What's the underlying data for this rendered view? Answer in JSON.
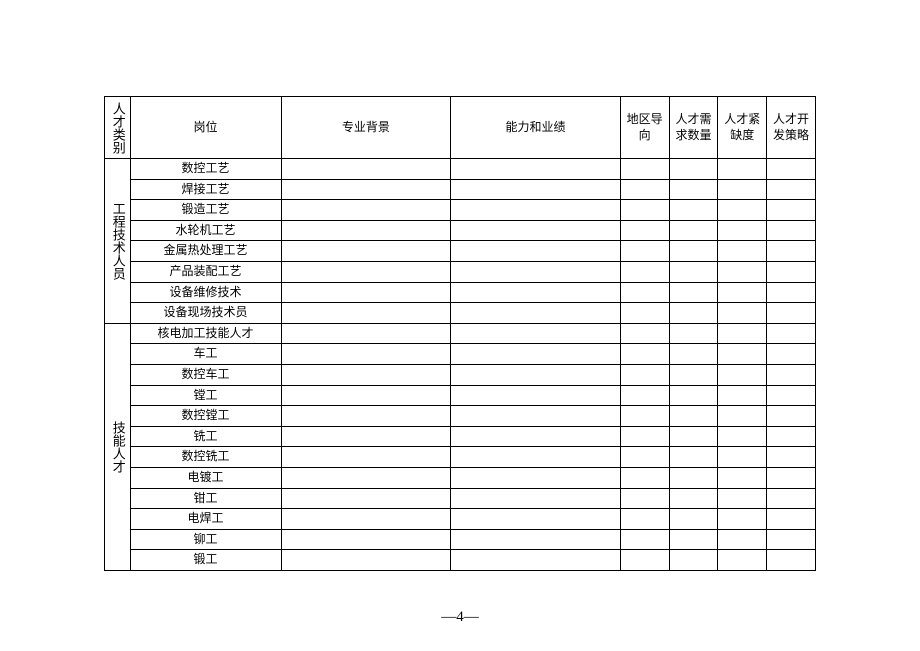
{
  "headers": {
    "category": "人才类别",
    "position": "岗位",
    "background": "专业背景",
    "performance": "能力和业绩",
    "region": "地区导向",
    "demand": "人才需求数量",
    "scarcity": "人才紧缺度",
    "strategy": "人才开发策略"
  },
  "groups": [
    {
      "label": "工程技术人员",
      "rows": [
        "数控工艺",
        "焊接工艺",
        "锻造工艺",
        "水轮机工艺",
        "金属热处理工艺",
        "产品装配工艺",
        "设备维修技术",
        "设备现场技术员"
      ]
    },
    {
      "label": "技能人才",
      "rows": [
        "核电加工技能人才",
        "车工",
        "数控车工",
        "镗工",
        "数控镗工",
        "铣工",
        "数控铣工",
        "电镀工",
        "钳工",
        "电焊工",
        "铆工",
        "锻工"
      ]
    }
  ],
  "page_number": "—4—"
}
